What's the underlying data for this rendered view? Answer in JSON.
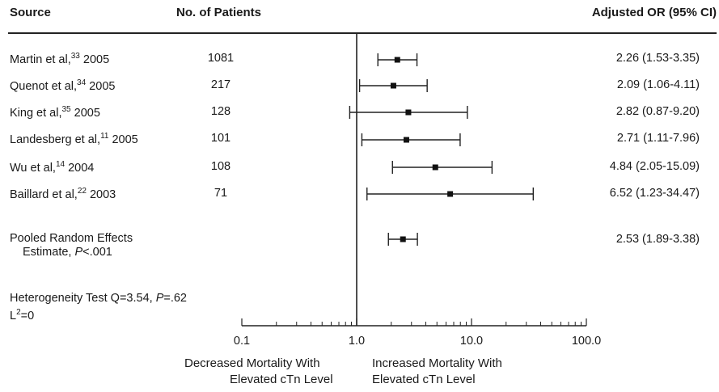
{
  "headers": {
    "source": "Source",
    "patients": "No. of Patients",
    "or": "Adjusted OR (95% CI)"
  },
  "studies": [
    {
      "author": "Martin et al,",
      "ref": "33",
      "year": " 2005",
      "n": "1081",
      "ci_text": "2.26 (1.53-3.35)"
    },
    {
      "author": "Quenot et al,",
      "ref": "34",
      "year": " 2005",
      "n": "217",
      "ci_text": "2.09 (1.06-4.11)"
    },
    {
      "author": "King et al,",
      "ref": "35",
      "year": " 2005",
      "n": "128",
      "ci_text": "2.82 (0.87-9.20)"
    },
    {
      "author": "Landesberg et al,",
      "ref": "11",
      "year": " 2005",
      "n": "101",
      "ci_text": "2.71 (1.11-7.96)"
    },
    {
      "author": "Wu et al,",
      "ref": "14",
      "year": " 2004",
      "n": "108",
      "ci_text": "4.84 (2.05-15.09)"
    },
    {
      "author": "Baillard et al,",
      "ref": "22",
      "year": " 2003",
      "n": "71",
      "ci_text": "6.52 (1.23-34.47)"
    }
  ],
  "pooled": {
    "line1": "Pooled Random Effects",
    "line2_pre": "Estimate, ",
    "line2_p": "P",
    "line2_post": "<.001",
    "ci_text": "2.53 (1.89-3.38)"
  },
  "heterogeneity": {
    "pre": "Heterogeneity Test Q=3.54, ",
    "p": "P",
    "post": "=.62",
    "l_base": "L",
    "l_sup": "2",
    "l_post": "=0"
  },
  "direction_labels": {
    "left_line1": "Decreased Mortality With",
    "left_line2": "Elevated cTn Level",
    "right_line1": "Increased Mortality With",
    "right_line2": "Elevated cTn Level"
  },
  "chart_data": {
    "type": "forest",
    "x_scale": "log10",
    "xlim": [
      0.1,
      100
    ],
    "x_ticks": [
      0.1,
      1,
      10,
      100
    ],
    "x_tick_labels": [
      "0.1",
      "1.0",
      "10.0",
      "100.0"
    ],
    "reference_line": 1,
    "estimates": [
      {
        "or": 2.26,
        "lo": 1.53,
        "hi": 3.35
      },
      {
        "or": 2.09,
        "lo": 1.06,
        "hi": 4.11
      },
      {
        "or": 2.82,
        "lo": 0.87,
        "hi": 9.2
      },
      {
        "or": 2.71,
        "lo": 1.11,
        "hi": 7.96
      },
      {
        "or": 4.84,
        "lo": 2.05,
        "hi": 15.09
      },
      {
        "or": 6.52,
        "lo": 1.23,
        "hi": 34.47
      }
    ],
    "pooled": {
      "or": 2.53,
      "lo": 1.89,
      "hi": 3.38
    }
  }
}
